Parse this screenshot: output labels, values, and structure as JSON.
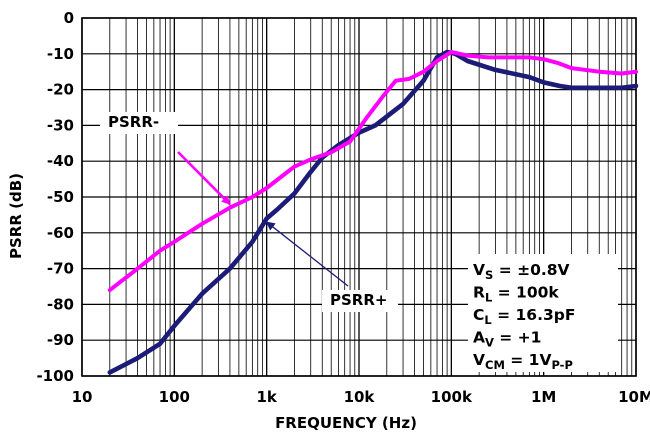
{
  "chart_data": {
    "type": "line",
    "title": "",
    "xlabel": "FREQUENCY (Hz)",
    "ylabel": "PSRR (dB)",
    "xscale": "log",
    "xlim": [
      10,
      10000000
    ],
    "ylim": [
      -100,
      0
    ],
    "grid": true,
    "x_ticks": [
      "10",
      "100",
      "1k",
      "10k",
      "100k",
      "1M",
      "10M"
    ],
    "y_ticks": [
      "0",
      "-10",
      "-20",
      "-30",
      "-40",
      "-50",
      "-60",
      "-70",
      "-80",
      "-90",
      "-100"
    ],
    "series": [
      {
        "name": "PSRR-",
        "color": "#ff00ff",
        "x": [
          20,
          40,
          70,
          100,
          200,
          400,
          700,
          1000,
          1500,
          2000,
          3000,
          5000,
          8000,
          12000,
          18000,
          25000,
          35000,
          50000,
          70000,
          100000,
          150000,
          250000,
          400000,
          700000,
          1000000,
          1400000,
          2000000,
          4000000,
          7000000,
          10000000
        ],
        "values": [
          -76,
          -70,
          -65,
          -62.5,
          -57.5,
          -53,
          -50,
          -47.5,
          -44,
          -41.5,
          -39.5,
          -37.5,
          -34.5,
          -28,
          -22,
          -17.5,
          -17,
          -15,
          -12,
          -9.5,
          -10.5,
          -11,
          -11,
          -11,
          -11.5,
          -12.5,
          -14,
          -15,
          -15.5,
          -15
        ]
      },
      {
        "name": "PSRR+",
        "color": "#1c1c78",
        "x": [
          20,
          40,
          70,
          100,
          200,
          400,
          700,
          1000,
          1300,
          2000,
          3000,
          4000,
          6000,
          10000,
          15000,
          20000,
          30000,
          50000,
          70000,
          90000,
          110000,
          150000,
          300000,
          700000,
          1000000,
          1500000,
          2000000,
          4000000,
          7000000,
          10000000
        ],
        "values": [
          -99,
          -95,
          -91,
          -86,
          -77,
          -70,
          -62.5,
          -56,
          -53.5,
          -49,
          -43,
          -39,
          -35.5,
          -32,
          -30,
          -27.5,
          -24,
          -17.5,
          -11,
          -9.5,
          -10,
          -12,
          -14.5,
          -16.5,
          -18,
          -19,
          -19.5,
          -19.5,
          -19.5,
          -19
        ]
      }
    ],
    "annotations": [
      {
        "label": "PSRR-",
        "target": "PSRR-",
        "point_x": 400,
        "point_y": -52
      },
      {
        "label": "PSRR+",
        "target": "PSRR+",
        "point_x": 1000,
        "point_y": -57
      }
    ],
    "conditions": [
      {
        "main": "V",
        "sub": "S",
        "rest": " = ±0.8V"
      },
      {
        "main": "R",
        "sub": "L",
        "rest": " = 100k"
      },
      {
        "main": "C",
        "sub": "L",
        "rest": " = 16.3pF"
      },
      {
        "main": "A",
        "sub": "V",
        "rest": " = +1"
      },
      {
        "main": "V",
        "sub": "CM",
        "rest": " = 1V",
        "sub2": "P-P"
      }
    ]
  }
}
